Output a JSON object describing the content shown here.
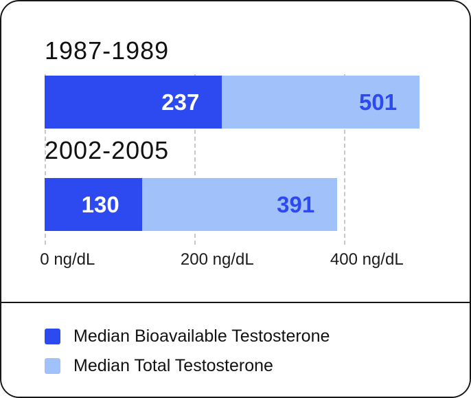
{
  "chart_data": {
    "type": "bar",
    "orientation": "horizontal",
    "unit": "ng/dL",
    "grid": "vertical-dashed",
    "legend_position": "bottom",
    "xlim": [
      0,
      504
    ],
    "categories": [
      "1987-1989",
      "2002-2005"
    ],
    "series": [
      {
        "name": "Median Bioavailable Testosterone",
        "color": "#2C4AF0",
        "values": [
          237,
          130
        ]
      },
      {
        "name": "Median Total Testosterone",
        "color": "#A0C1FA",
        "values": [
          501,
          391
        ]
      }
    ],
    "groups": [
      {
        "label": "1987-1989",
        "bioavailable": 237,
        "total": 501
      },
      {
        "label": "2002-2005",
        "bioavailable": 130,
        "total": 391
      }
    ],
    "x_ticks": [
      {
        "value": 0,
        "label": "0 ng/dL"
      },
      {
        "value": 200,
        "label": "200 ng/dL"
      },
      {
        "value": 400,
        "label": "400 ng/dL"
      }
    ]
  },
  "legend": {
    "items": [
      {
        "label": "Median Bioavailable Testosterone",
        "color": "#2C4AF0"
      },
      {
        "label": "Median Total Testosterone",
        "color": "#A0C1FA"
      }
    ]
  },
  "colors": {
    "primary": "#2C4AF0",
    "light": "#A0C1FA",
    "value_on_light": "#2C4AF0",
    "gridline": "#c8c8c8",
    "border": "#161616"
  }
}
